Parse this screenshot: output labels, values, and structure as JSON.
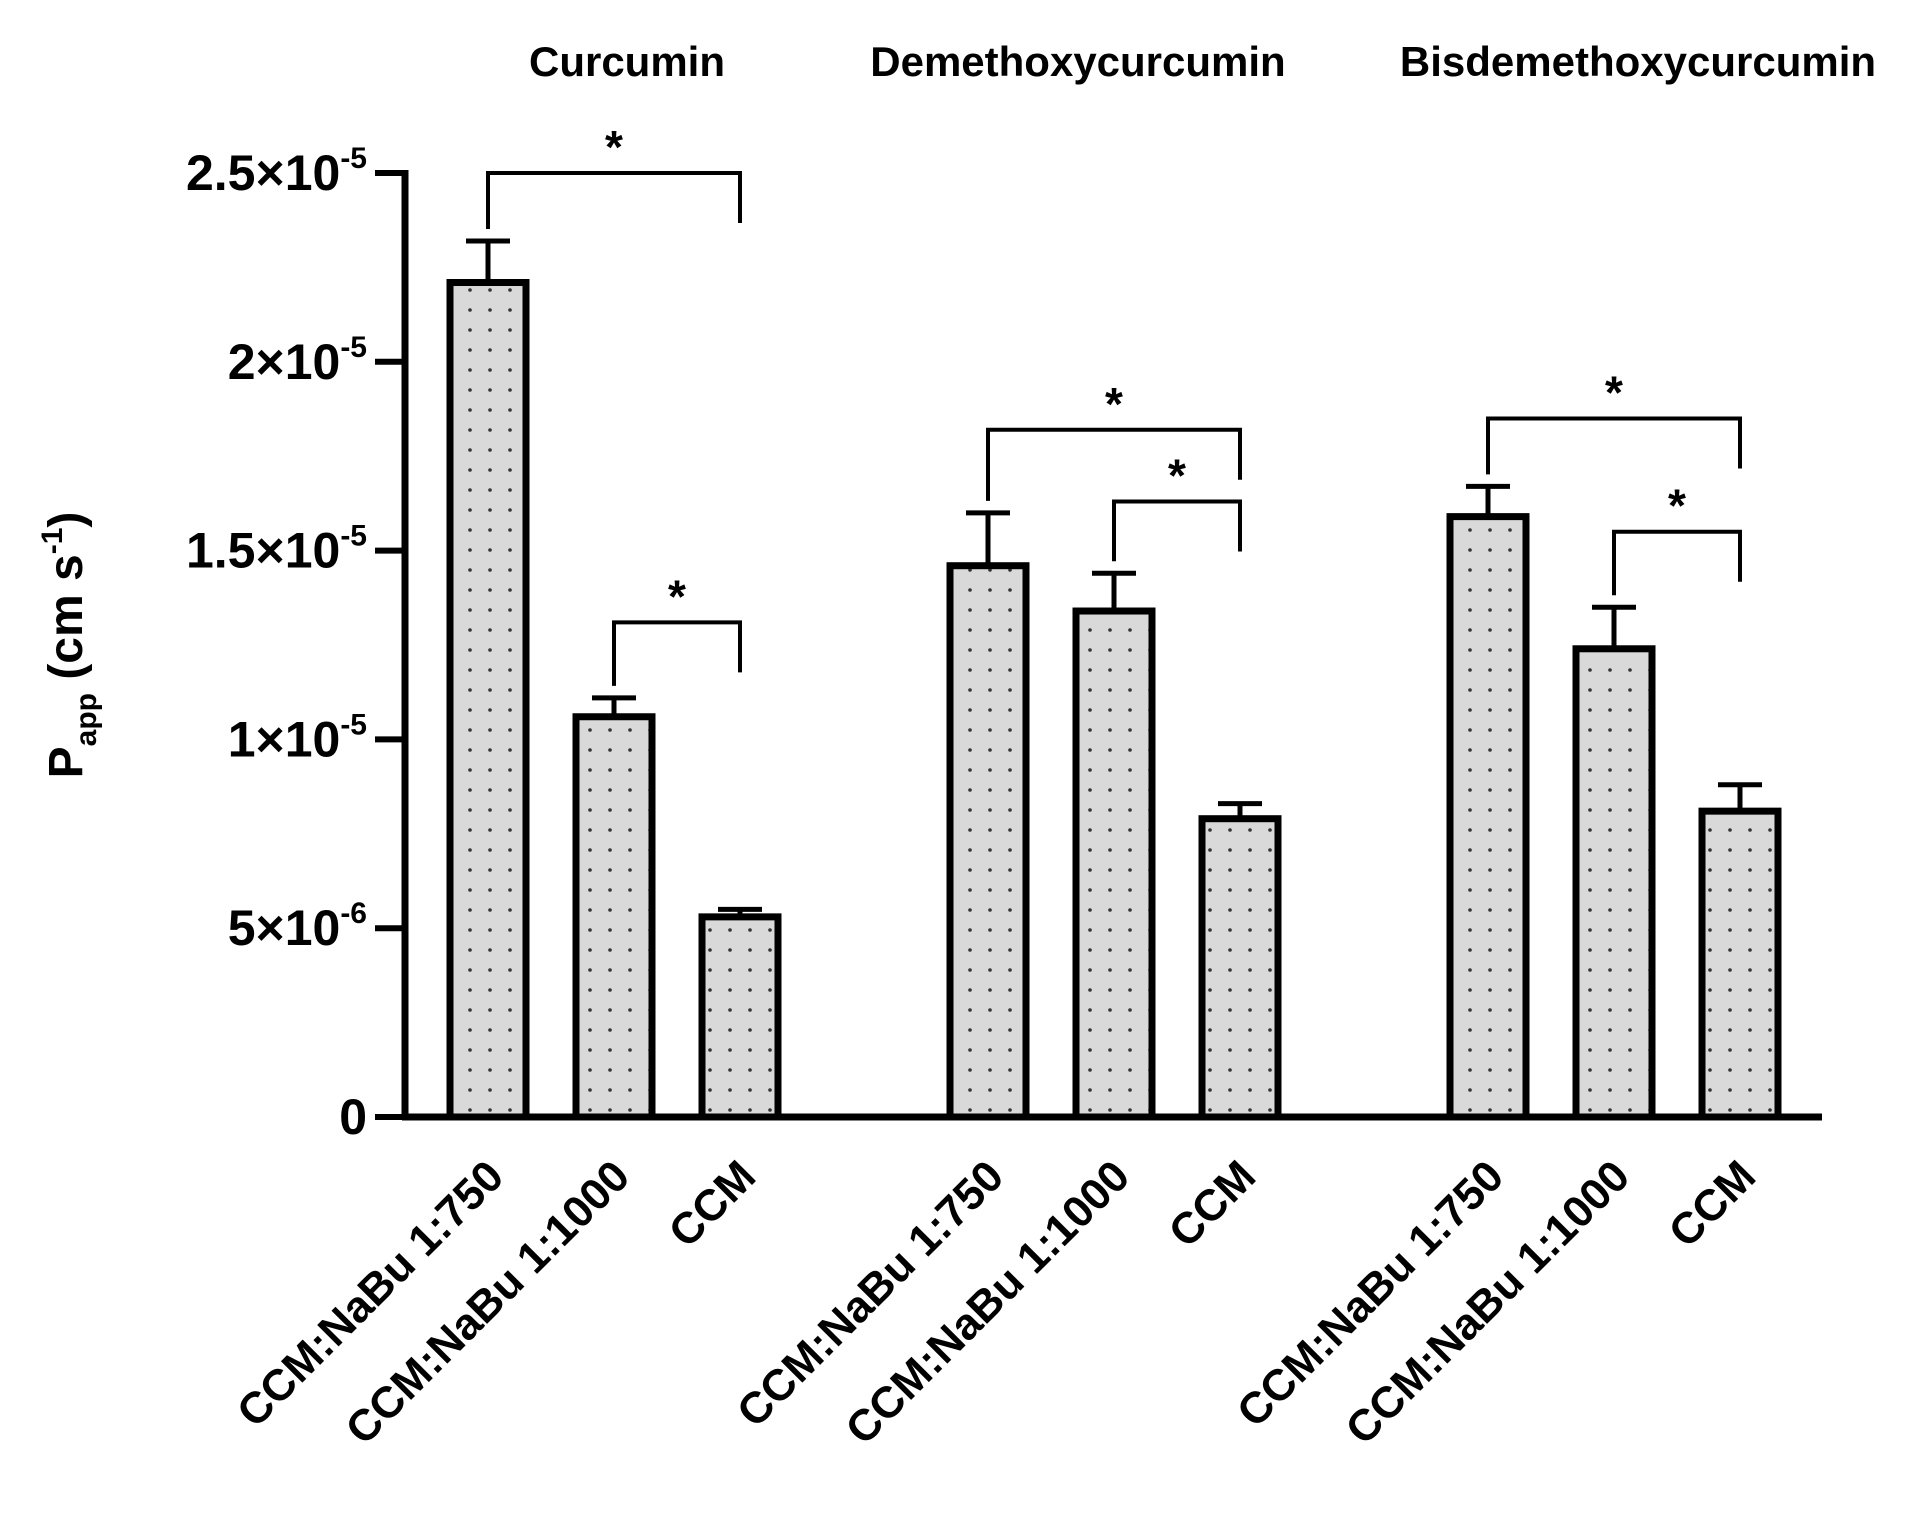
{
  "chart_data": {
    "type": "bar",
    "title": "",
    "ylabel": "P_app (cm s^-1)",
    "ylabel_parts": {
      "main": "P",
      "sub": "app",
      "unit_open": " (cm s",
      "unit_exp": "-1",
      "unit_close": ")"
    },
    "ylim": [
      0,
      2.5e-05
    ],
    "yticks": [
      {
        "value": 0,
        "mantissa": "0",
        "exp": ""
      },
      {
        "value": 5e-06,
        "mantissa": "5×10",
        "exp": "-6"
      },
      {
        "value": 1e-05,
        "mantissa": "1×10",
        "exp": "-5"
      },
      {
        "value": 1.5e-05,
        "mantissa": "1.5×10",
        "exp": "-5"
      },
      {
        "value": 2e-05,
        "mantissa": "2×10",
        "exp": "-5"
      },
      {
        "value": 2.5e-05,
        "mantissa": "2.5×10",
        "exp": "-5"
      }
    ],
    "bar_fill": "#d9d9d9",
    "bar_stroke": "#000000",
    "groups": [
      {
        "name": "Curcumin",
        "bars": [
          {
            "label": "CCM:NaBu 1:750",
            "value": 2.21e-05,
            "error": 1.1e-06
          },
          {
            "label": "CCM:NaBu 1:1000",
            "value": 1.06e-05,
            "error": 5e-07
          },
          {
            "label": "CCM",
            "value": 5.3e-06,
            "error": 2e-07
          }
        ],
        "significance": [
          {
            "from": 0,
            "to": 2,
            "level": 2.5e-05,
            "label": "*"
          },
          {
            "from": 1,
            "to": 2,
            "level": 1.31e-05,
            "label": "*"
          }
        ]
      },
      {
        "name": "Demethoxycurcumin",
        "bars": [
          {
            "label": "CCM:NaBu 1:750",
            "value": 1.46e-05,
            "error": 1.4e-06
          },
          {
            "label": "CCM:NaBu 1:1000",
            "value": 1.34e-05,
            "error": 1e-06
          },
          {
            "label": "CCM",
            "value": 7.9e-06,
            "error": 4e-07
          }
        ],
        "significance": [
          {
            "from": 0,
            "to": 2,
            "level": 1.82e-05,
            "label": "*"
          },
          {
            "from": 1,
            "to": 2,
            "level": 1.63e-05,
            "label": "*"
          }
        ]
      },
      {
        "name": "Bisdemethoxycurcumin",
        "bars": [
          {
            "label": "CCM:NaBu 1:750",
            "value": 1.59e-05,
            "error": 8e-07
          },
          {
            "label": "CCM:NaBu 1:1000",
            "value": 1.24e-05,
            "error": 1.1e-06
          },
          {
            "label": "CCM",
            "value": 8.1e-06,
            "error": 7e-07
          }
        ],
        "significance": [
          {
            "from": 0,
            "to": 2,
            "level": 1.85e-05,
            "label": "*"
          },
          {
            "from": 1,
            "to": 2,
            "level": 1.55e-05,
            "label": "*"
          }
        ]
      }
    ]
  }
}
